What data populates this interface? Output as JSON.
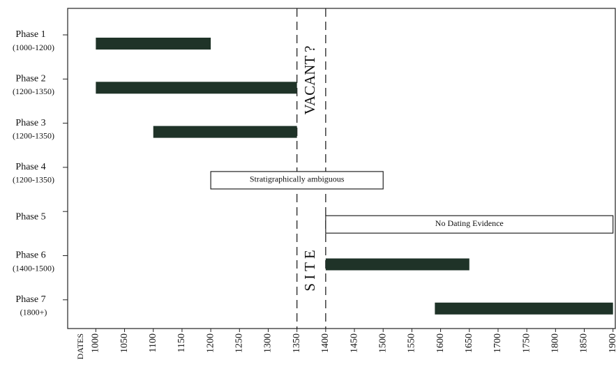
{
  "chart_data": {
    "type": "range",
    "x_label": "DATES",
    "xlim": [
      951,
      1904
    ],
    "xticks": [
      1000,
      1050,
      1100,
      1150,
      1200,
      1250,
      1300,
      1350,
      1400,
      1450,
      1500,
      1550,
      1600,
      1650,
      1700,
      1750,
      1800,
      1850,
      1900
    ],
    "categories": [
      "Phase 1",
      "Phase 2",
      "Phase 3",
      "Phase 4",
      "Phase 5",
      "Phase 6",
      "Phase 7"
    ],
    "category_notes": [
      "(1000-1200)",
      "(1200-1350)",
      "(1200-1350)",
      "(1200-1350)",
      null,
      "(1400-1500)",
      "(1800+)"
    ],
    "bars": [
      {
        "start": 1000,
        "end": 1200,
        "style": "solid"
      },
      {
        "start": 1000,
        "end": 1350,
        "style": "solid"
      },
      {
        "start": 1100,
        "end": 1350,
        "style": "solid"
      },
      {
        "start": 1200,
        "end": 1500,
        "style": "box",
        "label": "Stratigraphically ambiguous"
      },
      {
        "start": 1400,
        "end": 1900,
        "style": "box",
        "label": "No Dating Evidence"
      },
      {
        "start": 1400,
        "end": 1650,
        "style": "solid"
      },
      {
        "start": 1590,
        "end": 1900,
        "style": "solid"
      }
    ],
    "color": "#1f3328",
    "markers": [
      1350,
      1400
    ],
    "annotations": [
      "VACANT ?",
      "S I T E"
    ]
  }
}
